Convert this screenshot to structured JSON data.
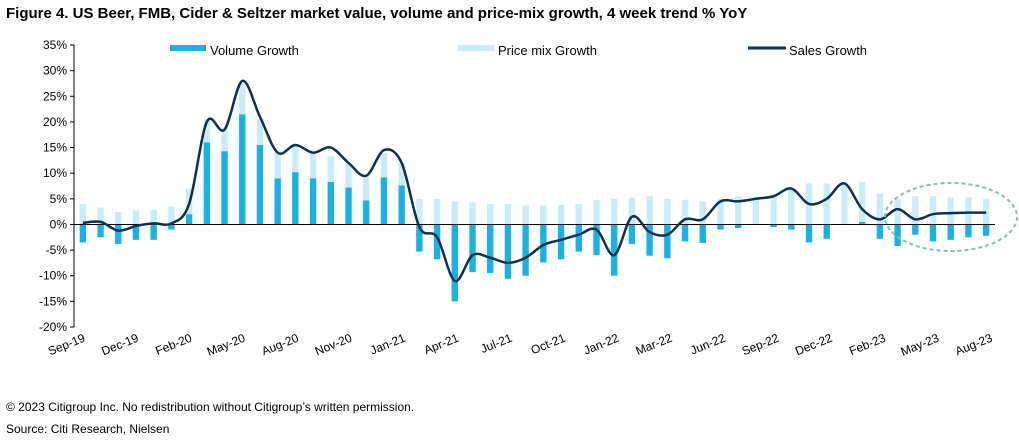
{
  "figure": {
    "title": "Figure 4. US Beer, FMB, Cider & Seltzer market value, volume and price-mix growth, 4 week trend % YoY",
    "copyright": "© 2023 Citigroup Inc. No redistribution without Citigroup’s written permission.",
    "source": "Source: Citi Research, Nielsen"
  },
  "chart_data": {
    "type": "bar",
    "stacked": true,
    "title": "Figure 4. US Beer, FMB, Cider & Seltzer market value, volume and price-mix growth, 4 week trend % YoY",
    "xlabel": "",
    "ylabel": "",
    "ylim": [
      -20,
      35
    ],
    "yticks": [
      "-20%",
      "-15%",
      "-10%",
      "-5%",
      "0%",
      "5%",
      "10%",
      "15%",
      "20%",
      "25%",
      "30%",
      "35%"
    ],
    "xtick_labels": [
      "Sep-19",
      "Dec-19",
      "Feb-20",
      "May-20",
      "Aug-20",
      "Nov-20",
      "Jan-21",
      "Apr-21",
      "Jul-21",
      "Oct-21",
      "Jan-22",
      "Mar-22",
      "Jun-22",
      "Sep-22",
      "Dec-22",
      "Feb-23",
      "May-23",
      "Aug-23"
    ],
    "legend_position": "top",
    "grid": false,
    "series": [
      {
        "name": "Volume Growth",
        "type": "bar",
        "color": "#17b3e6",
        "values": [
          -3.5,
          -2.5,
          -3.8,
          -3.0,
          -3.0,
          -1.0,
          2.0,
          16.0,
          14.3,
          21.5,
          15.5,
          9.0,
          10.2,
          9.0,
          8.3,
          7.2,
          4.7,
          9.2,
          7.6,
          -5.3,
          -6.8,
          -15.0,
          -9.3,
          -9.5,
          -10.6,
          -10.0,
          -7.4,
          -6.8,
          -5.3,
          -6.0,
          -10.0,
          -3.8,
          -6.1,
          -6.6,
          -3.3,
          -3.6,
          -1.0,
          -0.7,
          0.0,
          -0.5,
          -1.0,
          -3.5,
          -2.8,
          0.0,
          0.5,
          -2.8,
          -4.2,
          -2.0,
          -3.3,
          -3.0,
          -2.5,
          -2.2
        ]
      },
      {
        "name": "Price mix Growth",
        "type": "bar",
        "color": "#c9ecf8",
        "values": [
          4.0,
          3.3,
          2.4,
          2.7,
          2.8,
          3.5,
          5.0,
          4.5,
          4.5,
          6.0,
          5.0,
          5.0,
          5.3,
          5.0,
          5.0,
          4.8,
          4.8,
          4.7,
          4.4,
          5.0,
          5.0,
          4.5,
          4.3,
          4.0,
          4.0,
          3.7,
          3.7,
          3.8,
          4.0,
          4.8,
          5.0,
          5.2,
          5.5,
          5.0,
          4.8,
          4.5,
          5.0,
          5.5,
          5.5,
          6.0,
          7.0,
          8.0,
          8.0,
          8.0,
          7.8,
          6.0,
          5.0,
          5.5,
          5.5,
          5.3,
          5.3,
          5.0
        ]
      },
      {
        "name": "Sales Growth",
        "type": "line",
        "color": "#0e3150",
        "values": [
          0.3,
          0.5,
          -1.2,
          -0.3,
          0.2,
          0.2,
          4.0,
          20.0,
          18.5,
          28.0,
          21.0,
          14.0,
          15.5,
          14.0,
          15.0,
          12.0,
          9.5,
          14.5,
          12.0,
          -0.5,
          -2.5,
          -11.0,
          -6.0,
          -6.5,
          -7.5,
          -6.5,
          -4.0,
          -3.0,
          -2.0,
          -1.0,
          -6.0,
          1.5,
          -1.5,
          -2.0,
          1.0,
          1.0,
          4.5,
          4.5,
          5.0,
          5.5,
          7.0,
          4.0,
          5.0,
          8.0,
          3.0,
          1.0,
          3.0,
          1.0,
          2.0,
          2.2,
          2.3,
          2.3
        ]
      }
    ],
    "annotations": [
      {
        "shape": "dashed-ellipse",
        "color": "#7fc4a8",
        "around": "May-23 to Aug-23"
      }
    ]
  }
}
